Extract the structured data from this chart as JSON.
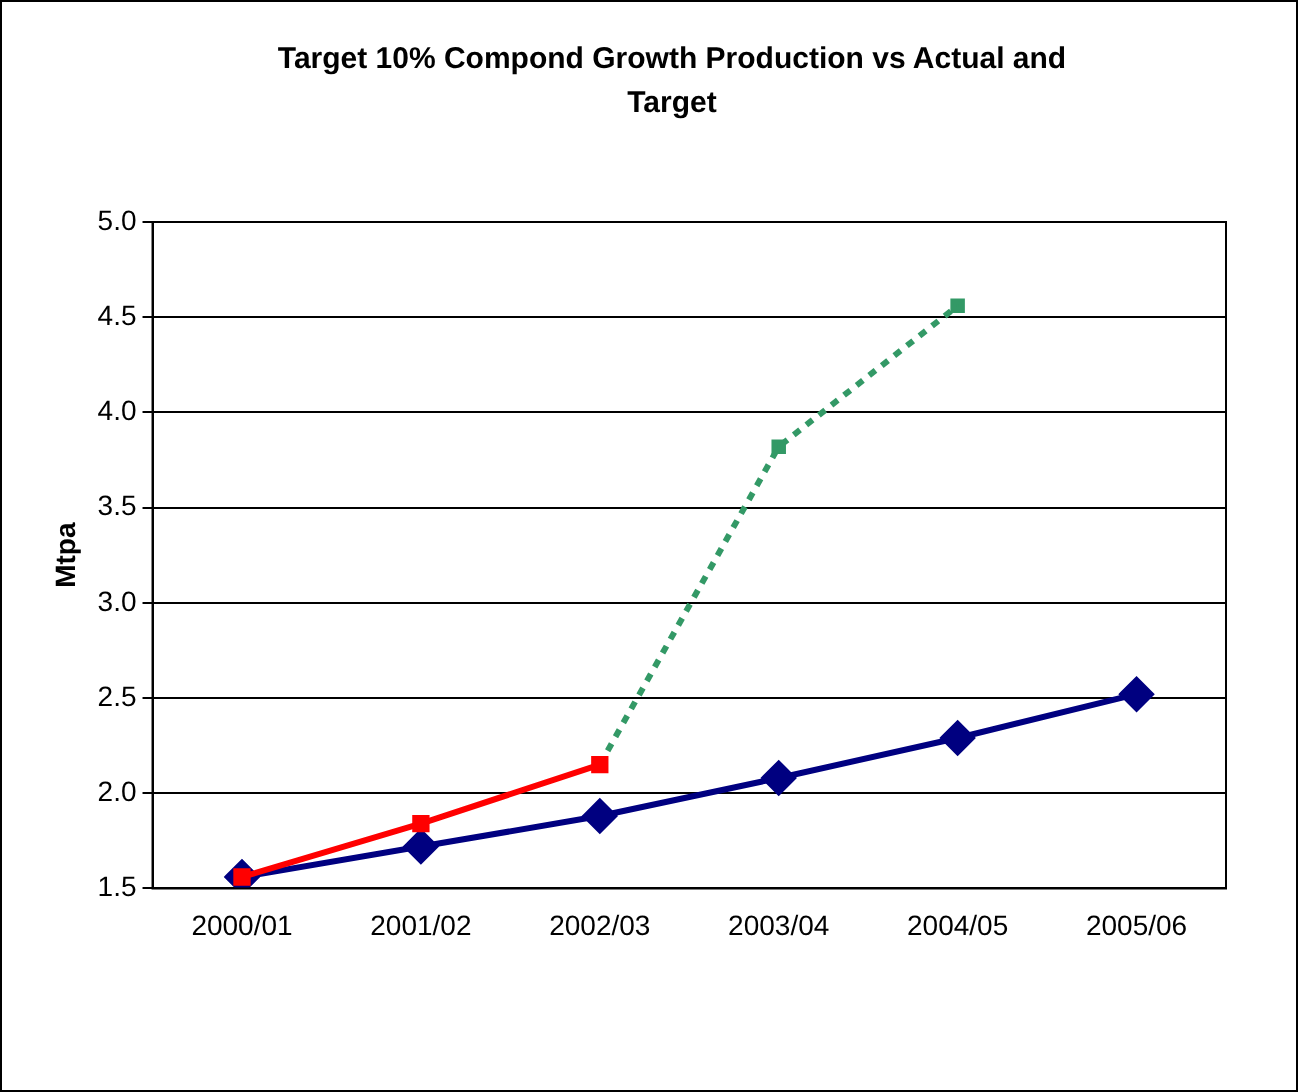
{
  "chart_data": {
    "type": "line",
    "title": "Target 10% Compond Growth Production vs Actual and Target",
    "ylabel": "Mtpa",
    "categories": [
      "2000/01",
      "2001/02",
      "2002/03",
      "2003/04",
      "2004/05",
      "2005/06"
    ],
    "series": [
      {
        "color": "#000080",
        "values": [
          1.56,
          1.72,
          1.88,
          2.08,
          2.29,
          2.52
        ],
        "marker": "diamond",
        "line_style": "solid"
      },
      {
        "color": "#ff0000",
        "values": [
          1.56,
          1.84,
          2.15,
          null,
          null,
          null
        ],
        "marker": "square",
        "line_style": "solid"
      },
      {
        "color": "#339966",
        "values": [
          null,
          null,
          2.15,
          3.82,
          4.56,
          null
        ],
        "marker": "square",
        "line_style": "dotted"
      }
    ],
    "ylim": [
      1.5,
      5.0
    ],
    "yticks": [
      1.5,
      {
        "value": 2,
        "label": "2.0"
      },
      2.5,
      {
        "value": 3,
        "label": "3.0"
      },
      3.5,
      {
        "value": 4,
        "label": "4.0"
      },
      4.5,
      {
        "value": 5,
        "label": "5.0"
      }
    ],
    "grid": "y",
    "legend": false
  }
}
